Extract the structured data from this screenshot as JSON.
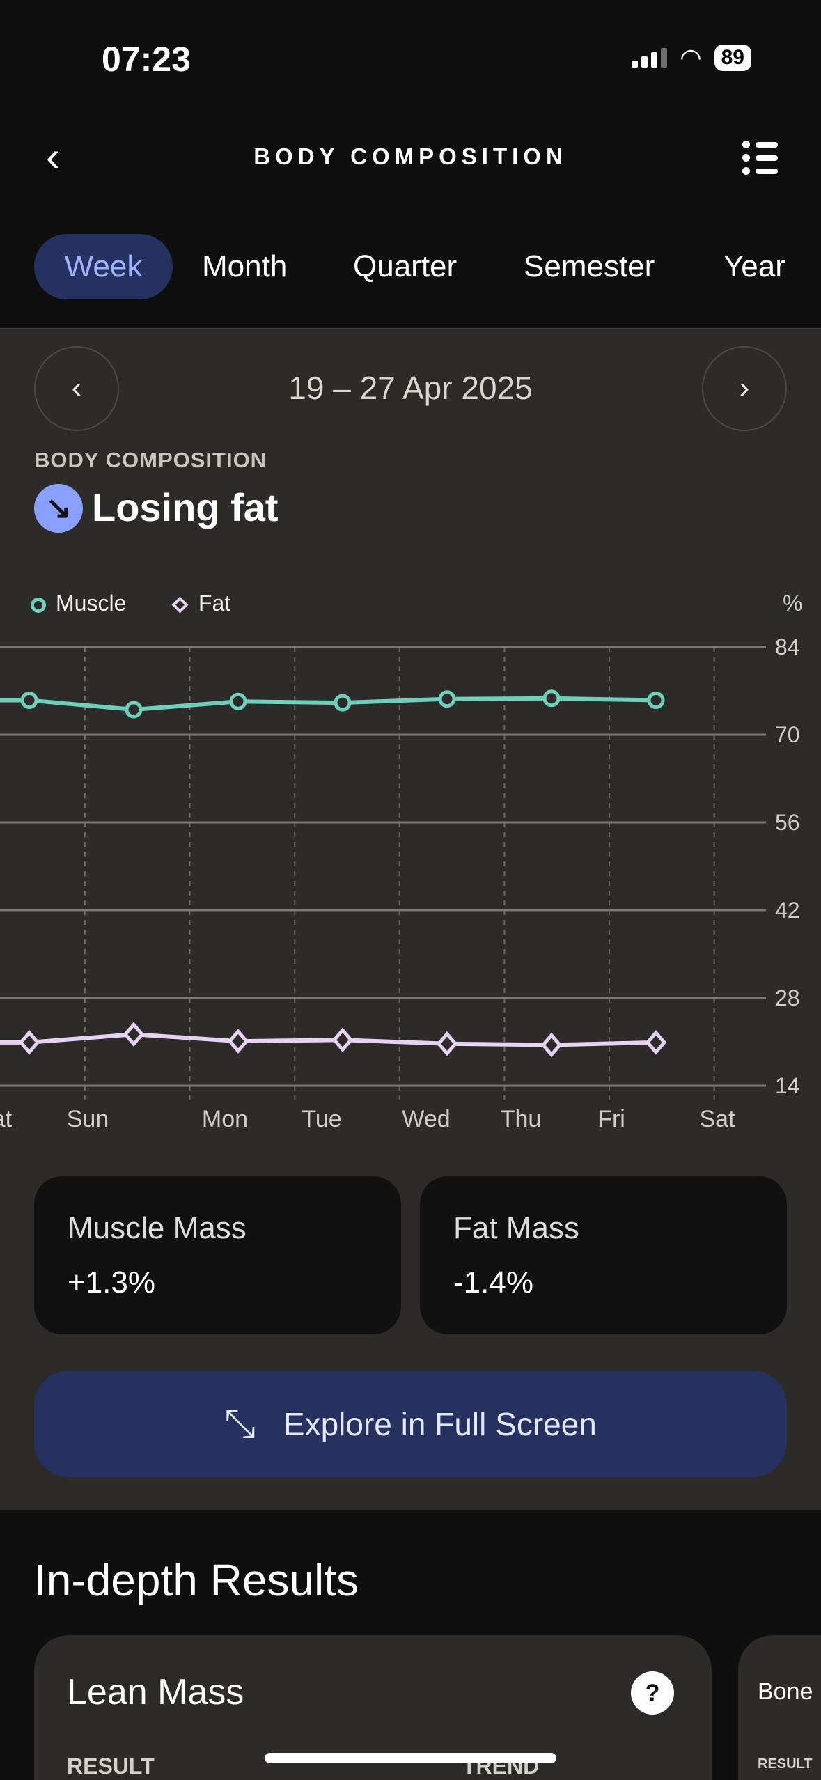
{
  "status_bar": {
    "time": "07:23",
    "battery": "89"
  },
  "header": {
    "title": "BODY COMPOSITION",
    "back_icon": "chevron-left-icon",
    "menu_icon": "list-icon"
  },
  "tabs": [
    {
      "label": "Week",
      "active": true
    },
    {
      "label": "Month"
    },
    {
      "label": "Quarter"
    },
    {
      "label": "Semester"
    },
    {
      "label": "Year"
    }
  ],
  "date_nav": {
    "range": "19 – 27 Apr 2025",
    "prev": "‹",
    "next": "›"
  },
  "section": {
    "label": "BODY COMPOSITION",
    "state": "Losing fat",
    "state_icon": "arrow-down-right-icon"
  },
  "chart_data": {
    "type": "line",
    "unit_label": "%",
    "x_labels": [
      "Sat",
      "Sun",
      "Mon",
      "Tue",
      "Wed",
      "Thu",
      "Fri",
      "Sat"
    ],
    "yticks": [
      84,
      70,
      56,
      42,
      28,
      14
    ],
    "ylim": [
      14,
      84
    ],
    "grid": true,
    "legend_placement": "top-left",
    "series": [
      {
        "name": "Muscle",
        "color": "#6fcfbd",
        "marker": "circle",
        "values": [
          75.5,
          74.0,
          75.3,
          75.1,
          75.7,
          75.8,
          75.5
        ]
      },
      {
        "name": "Fat",
        "color": "#e6d2f2",
        "marker": "diamond",
        "values": [
          20.9,
          22.2,
          21.1,
          21.3,
          20.7,
          20.5,
          20.9
        ]
      }
    ]
  },
  "summary": [
    {
      "title": "Muscle Mass",
      "value": "+1.3%"
    },
    {
      "title": "Fat Mass",
      "value": "-1.4%"
    }
  ],
  "explore_button": "Explore in Full Screen",
  "results": {
    "heading": "In-depth Results",
    "cards": [
      {
        "title": "Lean Mass",
        "result_label": "RESULT",
        "trend_label": "TREND"
      },
      {
        "title": "Bone",
        "result_label": "RESULT"
      }
    ],
    "help": "?"
  }
}
